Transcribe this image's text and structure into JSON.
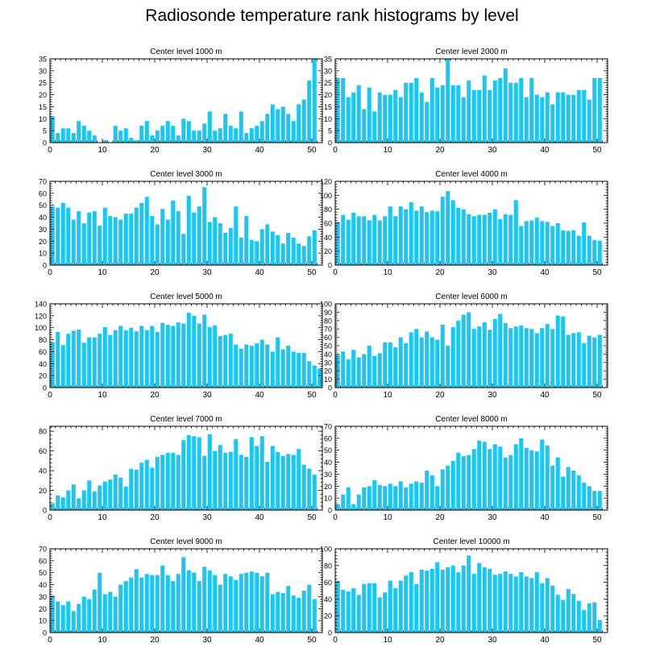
{
  "title": "Radiosonde temperature rank histograms by level",
  "colors": {
    "bar": "#1bc6f3",
    "axis": "#000000"
  },
  "chart_data": [
    {
      "type": "bar",
      "title": "Center level 1000 m",
      "xlabel": "",
      "ylabel": "",
      "xlim": [
        0,
        52
      ],
      "ylim": [
        0,
        35
      ],
      "xticks": [
        0,
        10,
        20,
        30,
        40,
        50
      ],
      "yticks": [
        0,
        5,
        10,
        15,
        20,
        25,
        30,
        35
      ],
      "x": [
        0,
        1,
        2,
        3,
        4,
        5,
        6,
        7,
        8,
        9,
        10,
        11,
        12,
        13,
        14,
        15,
        16,
        17,
        18,
        19,
        20,
        21,
        22,
        23,
        24,
        25,
        26,
        27,
        28,
        29,
        30,
        31,
        32,
        33,
        34,
        35,
        36,
        37,
        38,
        39,
        40,
        41,
        42,
        43,
        44,
        45,
        46,
        47,
        48,
        49,
        50,
        51
      ],
      "values": [
        11,
        4,
        6,
        6,
        4,
        9,
        7,
        5,
        3,
        0,
        1,
        0,
        7,
        5,
        6,
        2,
        1,
        7,
        9,
        3,
        5,
        7,
        9,
        7,
        3,
        10,
        9,
        5,
        5,
        8,
        13,
        5,
        6,
        12,
        7,
        6,
        13,
        4,
        6,
        7,
        9,
        12,
        16,
        14,
        15,
        12,
        9,
        16,
        18,
        26,
        35,
        0
      ]
    },
    {
      "type": "bar",
      "title": "Center level 2000 m",
      "xlabel": "",
      "ylabel": "",
      "xlim": [
        0,
        52
      ],
      "ylim": [
        0,
        35
      ],
      "xticks": [
        0,
        10,
        20,
        30,
        40,
        50
      ],
      "yticks": [
        0,
        5,
        10,
        15,
        20,
        25,
        30,
        35
      ],
      "x": [
        0,
        1,
        2,
        3,
        4,
        5,
        6,
        7,
        8,
        9,
        10,
        11,
        12,
        13,
        14,
        15,
        16,
        17,
        18,
        19,
        20,
        21,
        22,
        23,
        24,
        25,
        26,
        27,
        28,
        29,
        30,
        31,
        32,
        33,
        34,
        35,
        36,
        37,
        38,
        39,
        40,
        41,
        42,
        43,
        44,
        45,
        46,
        47,
        48,
        49,
        50,
        51
      ],
      "values": [
        27,
        27,
        19,
        21,
        24,
        14,
        23,
        13,
        21,
        20,
        20,
        22,
        19,
        25,
        25,
        27,
        21,
        17,
        27,
        23,
        24,
        35,
        24,
        24,
        19,
        26,
        22,
        22,
        28,
        22,
        26,
        27,
        31,
        25,
        25,
        27,
        19,
        27,
        20,
        19,
        21,
        16,
        21,
        21,
        20,
        20,
        22,
        22,
        18,
        27,
        27,
        0
      ]
    },
    {
      "type": "bar",
      "title": "Center level 3000 m",
      "xlabel": "",
      "ylabel": "",
      "xlim": [
        0,
        52
      ],
      "ylim": [
        0,
        70
      ],
      "xticks": [
        0,
        10,
        20,
        30,
        40,
        50
      ],
      "yticks": [
        0,
        10,
        20,
        30,
        40,
        50,
        60,
        70
      ],
      "x": [
        0,
        1,
        2,
        3,
        4,
        5,
        6,
        7,
        8,
        9,
        10,
        11,
        12,
        13,
        14,
        15,
        16,
        17,
        18,
        19,
        20,
        21,
        22,
        23,
        24,
        25,
        26,
        27,
        28,
        29,
        30,
        31,
        32,
        33,
        34,
        35,
        36,
        37,
        38,
        39,
        40,
        41,
        42,
        43,
        44,
        45,
        46,
        47,
        48,
        49,
        50,
        51
      ],
      "values": [
        49,
        48,
        52,
        48,
        38,
        45,
        35,
        44,
        45,
        33,
        48,
        41,
        40,
        38,
        43,
        43,
        48,
        52,
        57,
        41,
        34,
        47,
        38,
        54,
        45,
        26,
        58,
        44,
        49,
        65,
        36,
        40,
        35,
        27,
        31,
        49,
        23,
        41,
        21,
        20,
        30,
        34,
        28,
        25,
        18,
        27,
        23,
        18,
        16,
        24,
        29,
        0
      ]
    },
    {
      "type": "bar",
      "title": "Center level 4000 m",
      "xlabel": "",
      "ylabel": "",
      "xlim": [
        0,
        52
      ],
      "ylim": [
        0,
        120
      ],
      "xticks": [
        0,
        10,
        20,
        30,
        40,
        50
      ],
      "yticks": [
        0,
        20,
        40,
        60,
        80,
        100,
        120
      ],
      "x": [
        0,
        1,
        2,
        3,
        4,
        5,
        6,
        7,
        8,
        9,
        10,
        11,
        12,
        13,
        14,
        15,
        16,
        17,
        18,
        19,
        20,
        21,
        22,
        23,
        24,
        25,
        26,
        27,
        28,
        29,
        30,
        31,
        32,
        33,
        34,
        35,
        36,
        37,
        38,
        39,
        40,
        41,
        42,
        43,
        44,
        45,
        46,
        47,
        48,
        49,
        50,
        51
      ],
      "values": [
        62,
        72,
        65,
        75,
        70,
        70,
        64,
        72,
        64,
        70,
        84,
        70,
        84,
        80,
        90,
        78,
        84,
        76,
        78,
        77,
        98,
        106,
        93,
        82,
        80,
        73,
        70,
        72,
        72,
        75,
        80,
        66,
        73,
        72,
        93,
        56,
        63,
        64,
        68,
        63,
        62,
        56,
        60,
        50,
        49,
        50,
        42,
        61,
        42,
        36,
        35,
        0
      ]
    },
    {
      "type": "bar",
      "title": "Center level 5000 m",
      "xlabel": "",
      "ylabel": "",
      "xlim": [
        0,
        52
      ],
      "ylim": [
        0,
        140
      ],
      "xticks": [
        0,
        10,
        20,
        30,
        40,
        50
      ],
      "yticks": [
        0,
        20,
        40,
        60,
        80,
        100,
        120,
        140
      ],
      "x": [
        0,
        1,
        2,
        3,
        4,
        5,
        6,
        7,
        8,
        9,
        10,
        11,
        12,
        13,
        14,
        15,
        16,
        17,
        18,
        19,
        20,
        21,
        22,
        23,
        24,
        25,
        26,
        27,
        28,
        29,
        30,
        31,
        32,
        33,
        34,
        35,
        36,
        37,
        38,
        39,
        40,
        41,
        42,
        43,
        44,
        45,
        46,
        47,
        48,
        49,
        50,
        51
      ],
      "values": [
        76,
        93,
        71,
        90,
        95,
        97,
        75,
        84,
        84,
        90,
        101,
        88,
        96,
        103,
        96,
        100,
        94,
        103,
        96,
        103,
        93,
        108,
        105,
        103,
        109,
        107,
        125,
        120,
        107,
        122,
        101,
        104,
        86,
        88,
        90,
        72,
        65,
        72,
        70,
        74,
        80,
        72,
        60,
        84,
        64,
        70,
        60,
        58,
        58,
        44,
        37,
        32
      ]
    },
    {
      "type": "bar",
      "title": "Center level 6000 m",
      "xlabel": "",
      "ylabel": "",
      "xlim": [
        0,
        52
      ],
      "ylim": [
        0,
        100
      ],
      "xticks": [
        0,
        10,
        20,
        30,
        40,
        50
      ],
      "yticks": [
        0,
        10,
        20,
        30,
        40,
        50,
        60,
        70,
        80,
        90,
        100
      ],
      "x": [
        0,
        1,
        2,
        3,
        4,
        5,
        6,
        7,
        8,
        9,
        10,
        11,
        12,
        13,
        14,
        15,
        16,
        17,
        18,
        19,
        20,
        21,
        22,
        23,
        24,
        25,
        26,
        27,
        28,
        29,
        30,
        31,
        32,
        33,
        34,
        35,
        36,
        37,
        38,
        39,
        40,
        41,
        42,
        43,
        44,
        45,
        46,
        47,
        48,
        49,
        50,
        51
      ],
      "values": [
        39,
        43,
        34,
        45,
        36,
        40,
        50,
        38,
        41,
        54,
        54,
        48,
        60,
        53,
        66,
        70,
        60,
        67,
        60,
        57,
        75,
        50,
        72,
        80,
        87,
        90,
        70,
        73,
        78,
        69,
        82,
        88,
        77,
        71,
        73,
        74,
        71,
        70,
        65,
        71,
        76,
        70,
        86,
        85,
        63,
        65,
        66,
        53,
        62,
        60,
        63,
        0
      ]
    },
    {
      "type": "bar",
      "title": "Center level 7000 m",
      "xlabel": "",
      "ylabel": "",
      "xlim": [
        0,
        52
      ],
      "ylim": [
        0,
        85
      ],
      "xticks": [
        0,
        10,
        20,
        30,
        40,
        50
      ],
      "yticks": [
        0,
        20,
        40,
        60,
        80
      ],
      "x": [
        0,
        1,
        2,
        3,
        4,
        5,
        6,
        7,
        8,
        9,
        10,
        11,
        12,
        13,
        14,
        15,
        16,
        17,
        18,
        19,
        20,
        21,
        22,
        23,
        24,
        25,
        26,
        27,
        28,
        29,
        30,
        31,
        32,
        33,
        34,
        35,
        36,
        37,
        38,
        39,
        40,
        41,
        42,
        43,
        44,
        45,
        46,
        47,
        48,
        49,
        50,
        51
      ],
      "values": [
        7,
        15,
        13,
        20,
        26,
        12,
        20,
        30,
        19,
        25,
        29,
        31,
        36,
        33,
        24,
        42,
        41,
        48,
        51,
        43,
        54,
        56,
        58,
        58,
        56,
        71,
        76,
        75,
        74,
        55,
        77,
        60,
        66,
        58,
        59,
        72,
        56,
        54,
        74,
        65,
        75,
        49,
        65,
        59,
        55,
        57,
        56,
        62,
        46,
        42,
        36,
        0
      ]
    },
    {
      "type": "bar",
      "title": "Center level 8000 m",
      "xlabel": "",
      "ylabel": "",
      "xlim": [
        0,
        52
      ],
      "ylim": [
        0,
        70
      ],
      "xticks": [
        0,
        10,
        20,
        30,
        40,
        50
      ],
      "yticks": [
        0,
        10,
        20,
        30,
        40,
        50,
        60,
        70
      ],
      "x": [
        0,
        1,
        2,
        3,
        4,
        5,
        6,
        7,
        8,
        9,
        10,
        11,
        12,
        13,
        14,
        15,
        16,
        17,
        18,
        19,
        20,
        21,
        22,
        23,
        24,
        25,
        26,
        27,
        28,
        29,
        30,
        31,
        32,
        33,
        34,
        35,
        36,
        37,
        38,
        39,
        40,
        41,
        42,
        43,
        44,
        45,
        46,
        47,
        48,
        49,
        50,
        51
      ],
      "values": [
        5,
        13,
        19,
        5,
        13,
        19,
        20,
        25,
        21,
        20,
        22,
        20,
        24,
        19,
        22,
        24,
        23,
        33,
        29,
        20,
        34,
        37,
        41,
        48,
        45,
        46,
        51,
        58,
        57,
        51,
        55,
        53,
        44,
        46,
        55,
        60,
        52,
        50,
        49,
        59,
        54,
        37,
        44,
        28,
        36,
        33,
        29,
        23,
        20,
        16,
        16,
        0
      ]
    },
    {
      "type": "bar",
      "title": "Center level 9000 m",
      "xlabel": "",
      "ylabel": "",
      "xlim": [
        0,
        52
      ],
      "ylim": [
        0,
        70
      ],
      "xticks": [
        0,
        10,
        20,
        30,
        40,
        50
      ],
      "yticks": [
        0,
        10,
        20,
        30,
        40,
        50,
        60,
        70
      ],
      "x": [
        0,
        1,
        2,
        3,
        4,
        5,
        6,
        7,
        8,
        9,
        10,
        11,
        12,
        13,
        14,
        15,
        16,
        17,
        18,
        19,
        20,
        21,
        22,
        23,
        24,
        25,
        26,
        27,
        28,
        29,
        30,
        31,
        32,
        33,
        34,
        35,
        36,
        37,
        38,
        39,
        40,
        41,
        42,
        43,
        44,
        45,
        46,
        47,
        48,
        49,
        50,
        51
      ],
      "values": [
        31,
        26,
        23,
        26,
        18,
        24,
        30,
        28,
        36,
        50,
        32,
        34,
        30,
        40,
        43,
        46,
        53,
        46,
        49,
        48,
        48,
        56,
        48,
        43,
        49,
        63,
        52,
        50,
        43,
        55,
        52,
        48,
        40,
        49,
        47,
        44,
        49,
        50,
        51,
        50,
        47,
        50,
        32,
        34,
        33,
        39,
        31,
        29,
        35,
        40,
        28,
        0
      ]
    },
    {
      "type": "bar",
      "title": "Center level 10000 m",
      "xlabel": "",
      "ylabel": "",
      "xlim": [
        0,
        52
      ],
      "ylim": [
        0,
        100
      ],
      "xticks": [
        0,
        10,
        20,
        30,
        40,
        50
      ],
      "yticks": [
        0,
        20,
        40,
        60,
        80,
        100
      ],
      "x": [
        0,
        1,
        2,
        3,
        4,
        5,
        6,
        7,
        8,
        9,
        10,
        11,
        12,
        13,
        14,
        15,
        16,
        17,
        18,
        19,
        20,
        21,
        22,
        23,
        24,
        25,
        26,
        27,
        28,
        29,
        30,
        31,
        32,
        33,
        34,
        35,
        36,
        37,
        38,
        39,
        40,
        41,
        42,
        43,
        44,
        45,
        46,
        47,
        48,
        49,
        50,
        51
      ],
      "values": [
        62,
        51,
        49,
        53,
        45,
        58,
        59,
        59,
        42,
        48,
        62,
        53,
        62,
        68,
        72,
        58,
        75,
        74,
        76,
        84,
        75,
        78,
        80,
        72,
        80,
        92,
        70,
        83,
        78,
        76,
        69,
        70,
        73,
        70,
        67,
        72,
        67,
        65,
        72,
        59,
        65,
        56,
        45,
        39,
        52,
        46,
        38,
        27,
        35,
        36,
        15,
        0
      ]
    }
  ]
}
